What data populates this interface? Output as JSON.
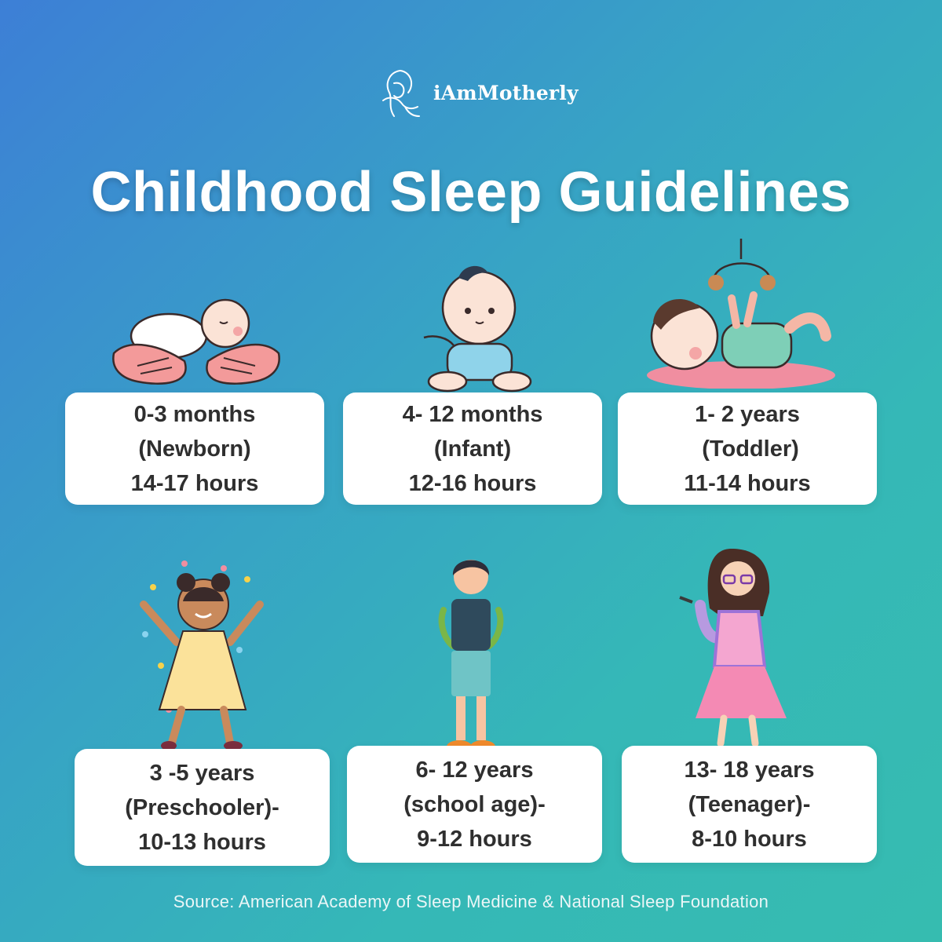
{
  "brand": {
    "name": "iAmMotherly"
  },
  "title": "Childhood Sleep Guidelines",
  "cards": [
    {
      "age": "0-3 months",
      "stage": "(Newborn)",
      "hours": "14-17 hours"
    },
    {
      "age": "4- 12 months",
      "stage": "(Infant)",
      "hours": "12-16 hours"
    },
    {
      "age": "1- 2 years",
      "stage": " (Toddler)",
      "hours": "11-14 hours"
    },
    {
      "age": "3 -5 years",
      "stage": "(Preschooler)-",
      "hours": "10-13 hours"
    },
    {
      "age": "6- 12 years",
      "stage": "(school age)-",
      "hours": "9-12 hours"
    },
    {
      "age": "13- 18 years",
      "stage": "(Teenager)-",
      "hours": "8-10 hours"
    }
  ],
  "source": "Source: American Academy of Sleep Medicine & National Sleep Foundation",
  "colors": {
    "card": "#ffffff",
    "text": "#2f2f2f",
    "title": "#ffffff"
  },
  "icons": [
    "mother-baby-logo-icon",
    "newborn-in-hands-icon",
    "sitting-infant-icon",
    "toddler-with-mobile-icon",
    "preschooler-girl-icon",
    "school-boy-icon",
    "teenage-girl-icon"
  ]
}
